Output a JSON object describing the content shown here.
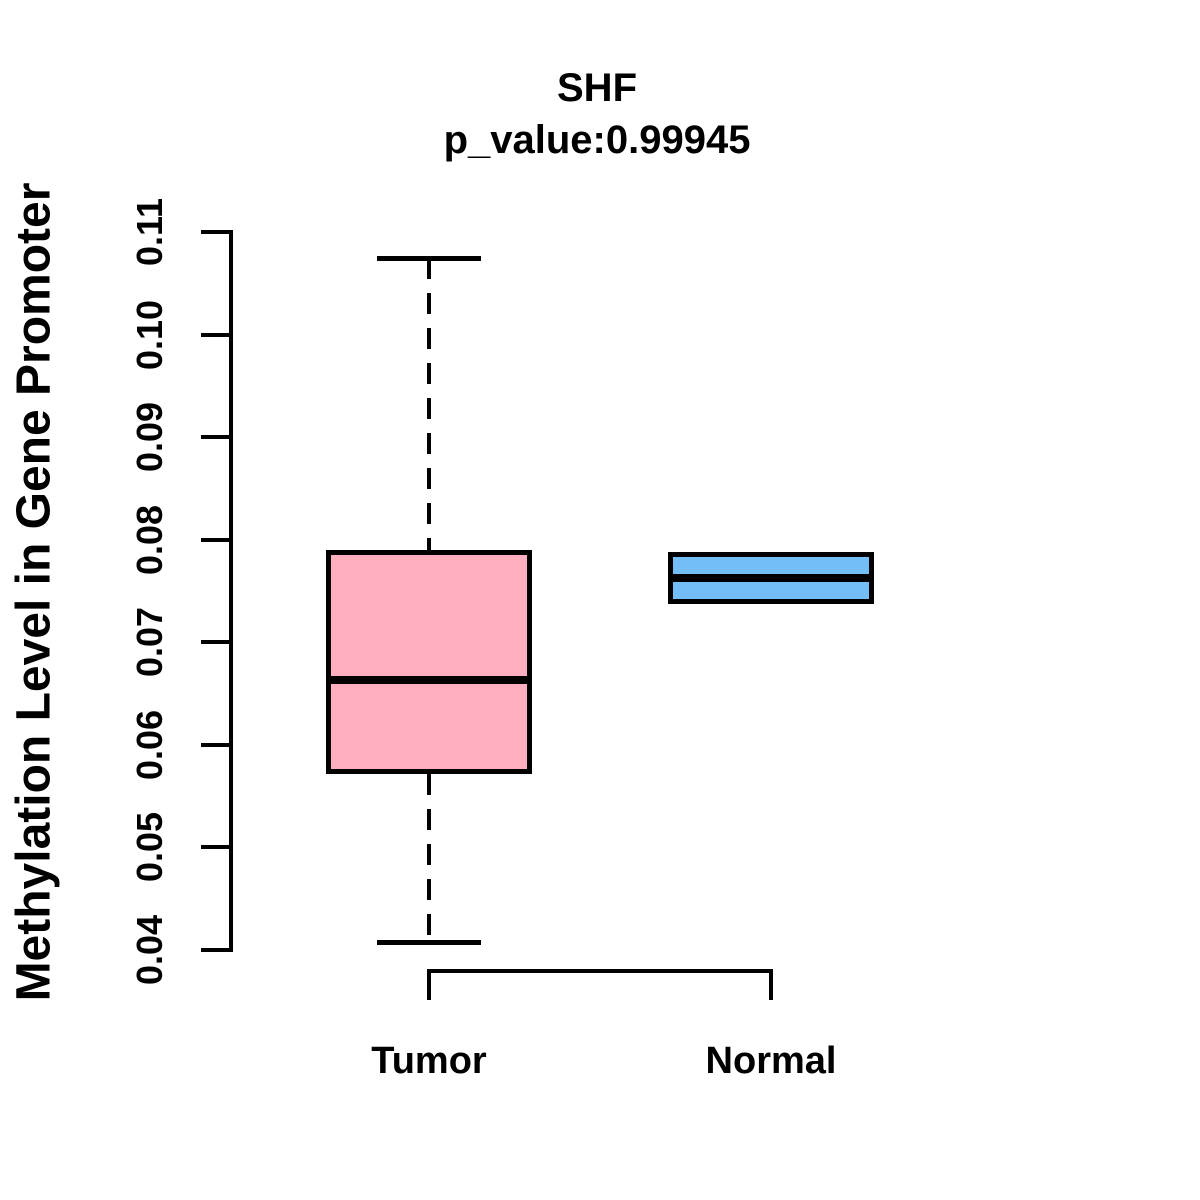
{
  "figure": {
    "title": "SHF",
    "subtitle": "p_value:0.99945",
    "ylabel": "Methylation Level in Gene Promoter"
  },
  "chart_data": {
    "type": "boxplot",
    "title": "SHF",
    "subtitle": "p_value:0.99945",
    "ylabel": "Methylation Level in Gene Promoter",
    "xlabel": "",
    "categories": [
      "Tumor",
      "Normal"
    ],
    "ylim": [
      0.04,
      0.11
    ],
    "yticks": [
      0.04,
      0.05,
      0.06,
      0.07,
      0.08,
      0.09,
      0.1,
      0.11
    ],
    "ytick_labels": [
      "0.04",
      "0.05",
      "0.06",
      "0.07",
      "0.08",
      "0.09",
      "0.10",
      "0.11"
    ],
    "grid": false,
    "legend": "none",
    "stroke_color": "#000000",
    "series": [
      {
        "name": "Tumor",
        "fill": "#FFAFC0",
        "stats": {
          "whisker_low": 0.0407,
          "q1": 0.0572,
          "median": 0.0663,
          "q3": 0.079,
          "whisker_high": 0.1075
        }
      },
      {
        "name": "Normal",
        "fill": "#74BEF8",
        "stats": {
          "whisker_low": 0.0737,
          "q1": 0.0737,
          "median": 0.0763,
          "q3": 0.0788,
          "whisker_high": 0.0788
        }
      }
    ]
  }
}
